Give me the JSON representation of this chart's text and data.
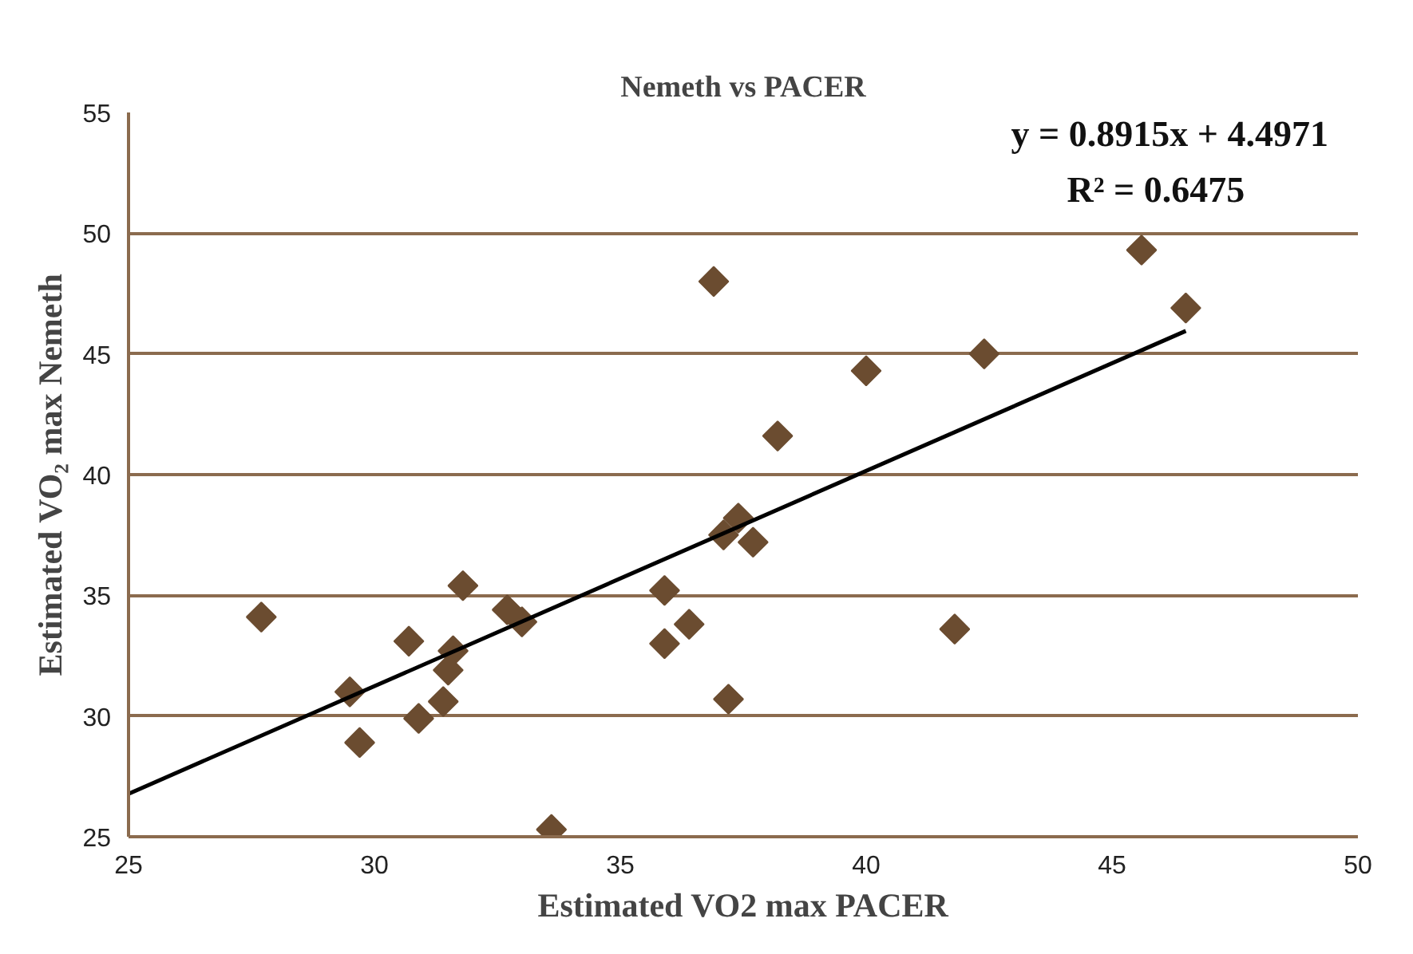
{
  "chart_data": {
    "type": "scatter",
    "title": "Nemeth vs PACER",
    "xlabel": "Estimated VO2 max PACER",
    "ylabel": "Estimated VO₂ max Nemeth",
    "xlim": [
      25,
      50
    ],
    "xticks": [
      25,
      30,
      35,
      40,
      45,
      50
    ],
    "ylim": [
      25,
      55
    ],
    "yticks": [
      25,
      30,
      35,
      40,
      45,
      50,
      55
    ],
    "grid": "y",
    "marker": "diamond",
    "annotations": [
      "y = 0.8915x + 4.4971",
      "R² = 0.6475"
    ],
    "series": [
      {
        "color": "#6b4c30",
        "x": [
          27.7,
          29.5,
          29.7,
          30.7,
          30.9,
          31.4,
          31.6,
          31.5,
          31.8,
          32.7,
          33.0,
          33.6,
          35.9,
          35.9,
          36.4,
          36.9,
          37.1,
          37.4,
          37.2,
          37.7,
          38.2,
          40.0,
          42.4,
          41.8,
          45.6,
          46.5
        ],
        "values": [
          34.1,
          31.0,
          28.9,
          33.1,
          29.9,
          30.6,
          32.7,
          31.9,
          35.4,
          34.4,
          33.9,
          25.3,
          35.2,
          33.0,
          33.8,
          48.0,
          37.5,
          38.2,
          30.7,
          37.2,
          41.6,
          44.3,
          45.0,
          33.6,
          49.3,
          46.9
        ]
      },
      {
        "type": "line",
        "color": "#000000",
        "line_style": "solid",
        "marker": "none",
        "x": [
          25,
          46.5
        ],
        "values": [
          26.78,
          45.95
        ]
      }
    ]
  }
}
